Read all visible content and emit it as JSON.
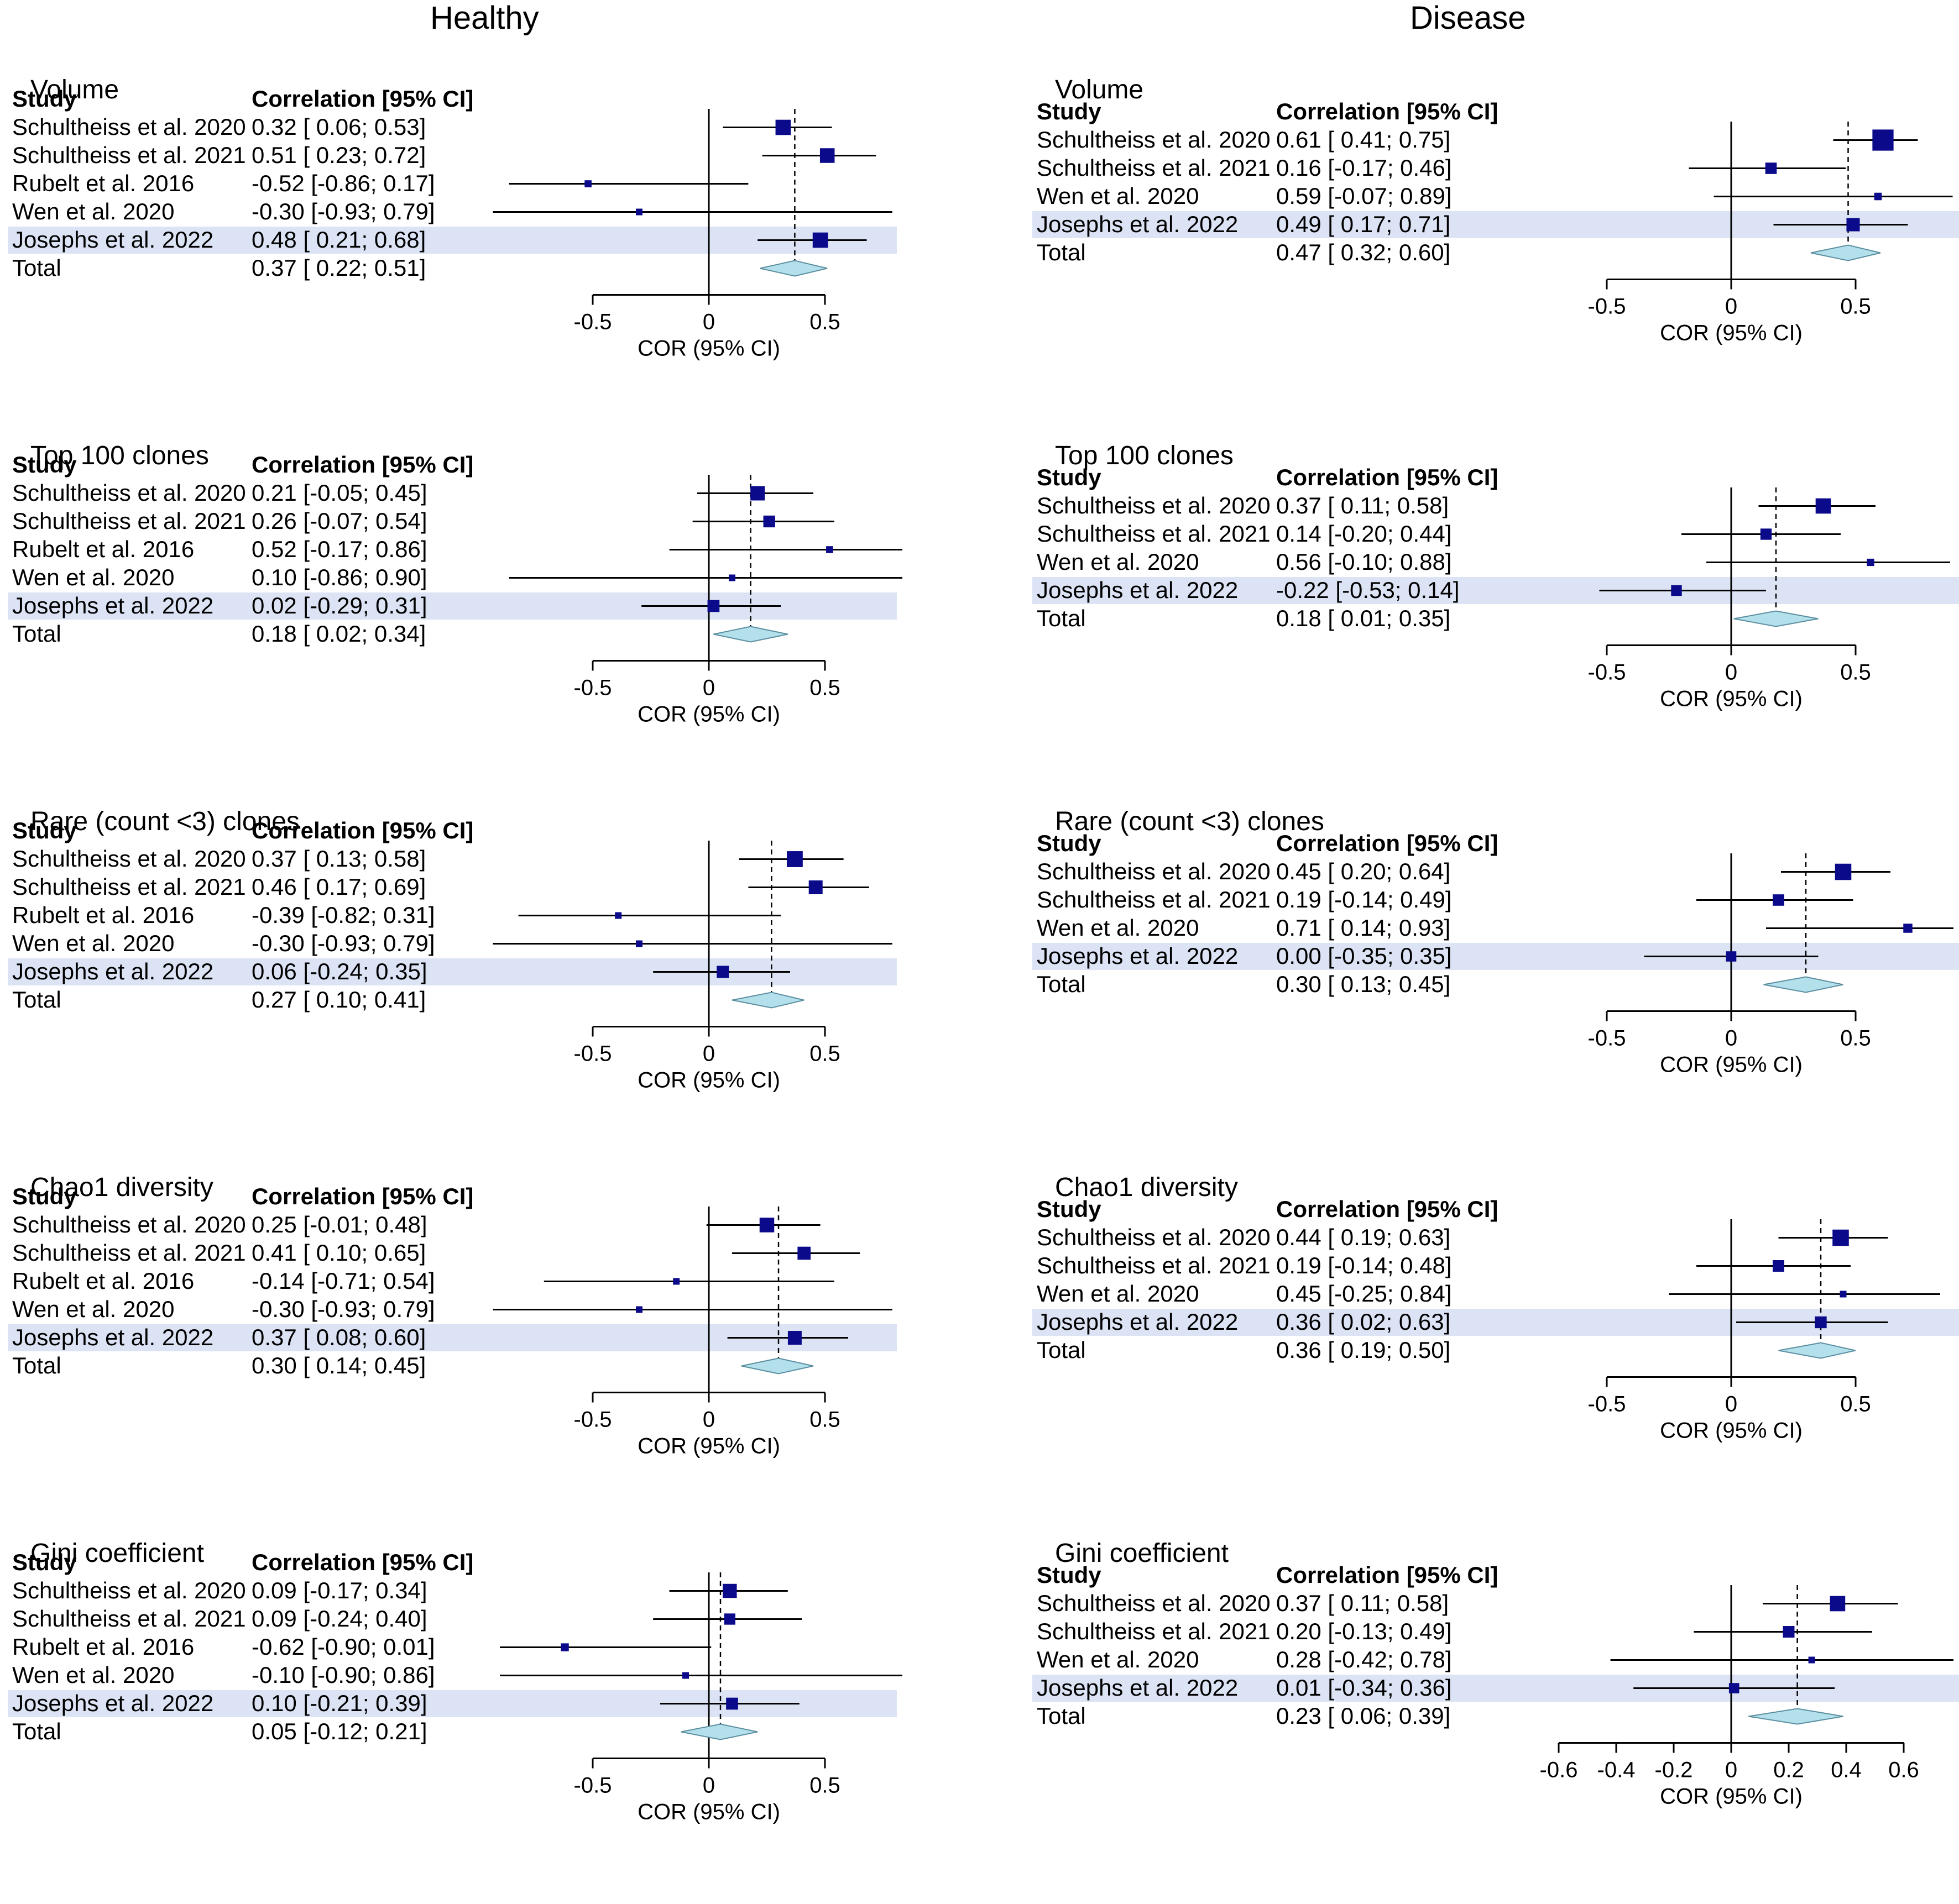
{
  "columns": {
    "healthy": "Healthy",
    "disease": "Disease"
  },
  "headers": {
    "study": "Study",
    "estimate": "Correlation [95% CI]",
    "xlabel": "COR (95% CI)"
  },
  "colors": {
    "square": "#0a0a8a",
    "diamond": "#b4e0ec",
    "highlight": "#dbe3f5"
  },
  "chart_data": [
    {
      "type": "forest",
      "column": "Healthy",
      "title": "Volume",
      "ticks": [
        -0.5,
        0,
        0.5
      ],
      "tick_labels": [
        "-0.5",
        "0",
        "0.5"
      ],
      "xlabel": "COR (95% CI)",
      "rows": [
        {
          "study": "Schultheiss et al. 2020",
          "est": 0.32,
          "lo": 0.06,
          "hi": 0.53,
          "label": "0.32 [ 0.06; 0.53]",
          "highlight": false
        },
        {
          "study": "Schultheiss et al. 2021",
          "est": 0.51,
          "lo": 0.23,
          "hi": 0.72,
          "label": "0.51 [ 0.23; 0.72]",
          "highlight": false
        },
        {
          "study": "Rubelt et al. 2016",
          "est": -0.52,
          "lo": -0.86,
          "hi": 0.17,
          "label": "-0.52 [-0.86; 0.17]",
          "highlight": false
        },
        {
          "study": "Wen et al. 2020",
          "est": -0.3,
          "lo": -0.93,
          "hi": 0.79,
          "label": "-0.30 [-0.93; 0.79]",
          "highlight": false
        },
        {
          "study": "Josephs et al. 2022",
          "est": 0.48,
          "lo": 0.21,
          "hi": 0.68,
          "label": "0.48 [ 0.21; 0.68]",
          "highlight": true
        }
      ],
      "total": {
        "study": "Total",
        "est": 0.37,
        "lo": 0.22,
        "hi": 0.51,
        "label": "0.37 [ 0.22; 0.51]"
      }
    },
    {
      "type": "forest",
      "column": "Disease",
      "title": "Volume",
      "ticks": [
        -0.5,
        0,
        0.5
      ],
      "tick_labels": [
        "-0.5",
        "0",
        "0.5"
      ],
      "xlabel": "COR (95% CI)",
      "rows": [
        {
          "study": "Schultheiss et al. 2020",
          "est": 0.61,
          "lo": 0.41,
          "hi": 0.75,
          "label": "0.61 [ 0.41; 0.75]",
          "highlight": false
        },
        {
          "study": "Schultheiss et al. 2021",
          "est": 0.16,
          "lo": -0.17,
          "hi": 0.46,
          "label": "0.16 [-0.17; 0.46]",
          "highlight": false
        },
        {
          "study": "Wen et al. 2020",
          "est": 0.59,
          "lo": -0.07,
          "hi": 0.89,
          "label": "0.59 [-0.07; 0.89]",
          "highlight": false
        },
        {
          "study": "Josephs et al. 2022",
          "est": 0.49,
          "lo": 0.17,
          "hi": 0.71,
          "label": "0.49 [ 0.17; 0.71]",
          "highlight": true
        }
      ],
      "total": {
        "study": "Total",
        "est": 0.47,
        "lo": 0.32,
        "hi": 0.6,
        "label": "0.47 [ 0.32; 0.60]"
      }
    },
    {
      "type": "forest",
      "column": "Healthy",
      "title": "Top 100 clones",
      "ticks": [
        -0.5,
        0,
        0.5
      ],
      "tick_labels": [
        "-0.5",
        "0",
        "0.5"
      ],
      "xlabel": "COR (95% CI)",
      "rows": [
        {
          "study": "Schultheiss et al. 2020",
          "est": 0.21,
          "lo": -0.05,
          "hi": 0.45,
          "label": "0.21 [-0.05; 0.45]",
          "highlight": false
        },
        {
          "study": "Schultheiss et al. 2021",
          "est": 0.26,
          "lo": -0.07,
          "hi": 0.54,
          "label": "0.26 [-0.07; 0.54]",
          "highlight": false
        },
        {
          "study": "Rubelt et al. 2016",
          "est": 0.52,
          "lo": -0.17,
          "hi": 0.86,
          "label": "0.52 [-0.17; 0.86]",
          "highlight": false
        },
        {
          "study": "Wen et al. 2020",
          "est": 0.1,
          "lo": -0.86,
          "hi": 0.9,
          "label": "0.10 [-0.86; 0.90]",
          "highlight": false
        },
        {
          "study": "Josephs et al. 2022",
          "est": 0.02,
          "lo": -0.29,
          "hi": 0.31,
          "label": "0.02 [-0.29; 0.31]",
          "highlight": true
        }
      ],
      "total": {
        "study": "Total",
        "est": 0.18,
        "lo": 0.02,
        "hi": 0.34,
        "label": "0.18 [ 0.02; 0.34]"
      }
    },
    {
      "type": "forest",
      "column": "Disease",
      "title": "Top 100 clones",
      "ticks": [
        -0.5,
        0,
        0.5
      ],
      "tick_labels": [
        "-0.5",
        "0",
        "0.5"
      ],
      "xlabel": "COR (95% CI)",
      "rows": [
        {
          "study": "Schultheiss et al. 2020",
          "est": 0.37,
          "lo": 0.11,
          "hi": 0.58,
          "label": "0.37 [ 0.11; 0.58]",
          "highlight": false
        },
        {
          "study": "Schultheiss et al. 2021",
          "est": 0.14,
          "lo": -0.2,
          "hi": 0.44,
          "label": "0.14 [-0.20; 0.44]",
          "highlight": false
        },
        {
          "study": "Wen et al. 2020",
          "est": 0.56,
          "lo": -0.1,
          "hi": 0.88,
          "label": "0.56 [-0.10; 0.88]",
          "highlight": false
        },
        {
          "study": "Josephs et al. 2022",
          "est": -0.22,
          "lo": -0.53,
          "hi": 0.14,
          "label": "-0.22 [-0.53; 0.14]",
          "highlight": true
        }
      ],
      "total": {
        "study": "Total",
        "est": 0.18,
        "lo": 0.01,
        "hi": 0.35,
        "label": "0.18 [ 0.01; 0.35]"
      }
    },
    {
      "type": "forest",
      "column": "Healthy",
      "title": "Rare (count <3) clones",
      "ticks": [
        -0.5,
        0,
        0.5
      ],
      "tick_labels": [
        "-0.5",
        "0",
        "0.5"
      ],
      "xlabel": "COR (95% CI)",
      "rows": [
        {
          "study": "Schultheiss et al. 2020",
          "est": 0.37,
          "lo": 0.13,
          "hi": 0.58,
          "label": "0.37 [ 0.13; 0.58]",
          "highlight": false
        },
        {
          "study": "Schultheiss et al. 2021",
          "est": 0.46,
          "lo": 0.17,
          "hi": 0.69,
          "label": "0.46 [ 0.17; 0.69]",
          "highlight": false
        },
        {
          "study": "Rubelt et al. 2016",
          "est": -0.39,
          "lo": -0.82,
          "hi": 0.31,
          "label": "-0.39 [-0.82; 0.31]",
          "highlight": false
        },
        {
          "study": "Wen et al. 2020",
          "est": -0.3,
          "lo": -0.93,
          "hi": 0.79,
          "label": "-0.30 [-0.93; 0.79]",
          "highlight": false
        },
        {
          "study": "Josephs et al. 2022",
          "est": 0.06,
          "lo": -0.24,
          "hi": 0.35,
          "label": "0.06 [-0.24; 0.35]",
          "highlight": true
        }
      ],
      "total": {
        "study": "Total",
        "est": 0.27,
        "lo": 0.1,
        "hi": 0.41,
        "label": "0.27 [ 0.10; 0.41]"
      }
    },
    {
      "type": "forest",
      "column": "Disease",
      "title": "Rare (count <3) clones",
      "ticks": [
        -0.5,
        0,
        0.5
      ],
      "tick_labels": [
        "-0.5",
        "0",
        "0.5"
      ],
      "xlabel": "COR (95% CI)",
      "rows": [
        {
          "study": "Schultheiss et al. 2020",
          "est": 0.45,
          "lo": 0.2,
          "hi": 0.64,
          "label": "0.45 [ 0.20; 0.64]",
          "highlight": false
        },
        {
          "study": "Schultheiss et al. 2021",
          "est": 0.19,
          "lo": -0.14,
          "hi": 0.49,
          "label": "0.19 [-0.14; 0.49]",
          "highlight": false
        },
        {
          "study": "Wen et al. 2020",
          "est": 0.71,
          "lo": 0.14,
          "hi": 0.93,
          "label": "0.71 [ 0.14; 0.93]",
          "highlight": false
        },
        {
          "study": "Josephs et al. 2022",
          "est": 0.0,
          "lo": -0.35,
          "hi": 0.35,
          "label": "0.00 [-0.35; 0.35]",
          "highlight": true
        }
      ],
      "total": {
        "study": "Total",
        "est": 0.3,
        "lo": 0.13,
        "hi": 0.45,
        "label": "0.30 [ 0.13; 0.45]"
      }
    },
    {
      "type": "forest",
      "column": "Healthy",
      "title": "Chao1 diversity",
      "ticks": [
        -0.5,
        0,
        0.5
      ],
      "tick_labels": [
        "-0.5",
        "0",
        "0.5"
      ],
      "xlabel": "COR (95% CI)",
      "rows": [
        {
          "study": "Schultheiss et al. 2020",
          "est": 0.25,
          "lo": -0.01,
          "hi": 0.48,
          "label": "0.25 [-0.01; 0.48]",
          "highlight": false
        },
        {
          "study": "Schultheiss et al. 2021",
          "est": 0.41,
          "lo": 0.1,
          "hi": 0.65,
          "label": "0.41 [ 0.10; 0.65]",
          "highlight": false
        },
        {
          "study": "Rubelt et al. 2016",
          "est": -0.14,
          "lo": -0.71,
          "hi": 0.54,
          "label": "-0.14 [-0.71; 0.54]",
          "highlight": false
        },
        {
          "study": "Wen et al. 2020",
          "est": -0.3,
          "lo": -0.93,
          "hi": 0.79,
          "label": "-0.30 [-0.93; 0.79]",
          "highlight": false
        },
        {
          "study": "Josephs et al. 2022",
          "est": 0.37,
          "lo": 0.08,
          "hi": 0.6,
          "label": "0.37 [ 0.08; 0.60]",
          "highlight": true
        }
      ],
      "total": {
        "study": "Total",
        "est": 0.3,
        "lo": 0.14,
        "hi": 0.45,
        "label": "0.30 [ 0.14; 0.45]"
      }
    },
    {
      "type": "forest",
      "column": "Disease",
      "title": "Chao1 diversity",
      "ticks": [
        -0.5,
        0,
        0.5
      ],
      "tick_labels": [
        "-0.5",
        "0",
        "0.5"
      ],
      "xlabel": "COR (95% CI)",
      "rows": [
        {
          "study": "Schultheiss et al. 2020",
          "est": 0.44,
          "lo": 0.19,
          "hi": 0.63,
          "label": "0.44 [ 0.19; 0.63]",
          "highlight": false
        },
        {
          "study": "Schultheiss et al. 2021",
          "est": 0.19,
          "lo": -0.14,
          "hi": 0.48,
          "label": "0.19 [-0.14; 0.48]",
          "highlight": false
        },
        {
          "study": "Wen et al. 2020",
          "est": 0.45,
          "lo": -0.25,
          "hi": 0.84,
          "label": "0.45 [-0.25; 0.84]",
          "highlight": false
        },
        {
          "study": "Josephs et al. 2022",
          "est": 0.36,
          "lo": 0.02,
          "hi": 0.63,
          "label": "0.36 [ 0.02; 0.63]",
          "highlight": true
        }
      ],
      "total": {
        "study": "Total",
        "est": 0.36,
        "lo": 0.19,
        "hi": 0.5,
        "label": "0.36 [ 0.19; 0.50]"
      }
    },
    {
      "type": "forest",
      "column": "Healthy",
      "title": "Gini coefficient",
      "ticks": [
        -0.5,
        0,
        0.5
      ],
      "tick_labels": [
        "-0.5",
        "0",
        "0.5"
      ],
      "xlabel": "COR (95% CI)",
      "rows": [
        {
          "study": "Schultheiss et al. 2020",
          "est": 0.09,
          "lo": -0.17,
          "hi": 0.34,
          "label": "0.09 [-0.17; 0.34]",
          "highlight": false
        },
        {
          "study": "Schultheiss et al. 2021",
          "est": 0.09,
          "lo": -0.24,
          "hi": 0.4,
          "label": "0.09 [-0.24; 0.40]",
          "highlight": false
        },
        {
          "study": "Rubelt et al. 2016",
          "est": -0.62,
          "lo": -0.9,
          "hi": 0.01,
          "label": "-0.62 [-0.90; 0.01]",
          "highlight": false
        },
        {
          "study": "Wen et al. 2020",
          "est": -0.1,
          "lo": -0.9,
          "hi": 0.86,
          "label": "-0.10 [-0.90; 0.86]",
          "highlight": false
        },
        {
          "study": "Josephs et al. 2022",
          "est": 0.1,
          "lo": -0.21,
          "hi": 0.39,
          "label": "0.10 [-0.21; 0.39]",
          "highlight": true
        }
      ],
      "total": {
        "study": "Total",
        "est": 0.05,
        "lo": -0.12,
        "hi": 0.21,
        "label": "0.05 [-0.12; 0.21]"
      }
    },
    {
      "type": "forest",
      "column": "Disease",
      "title": "Gini coefficient",
      "ticks": [
        -0.6,
        -0.4,
        -0.2,
        0,
        0.2,
        0.4,
        0.6
      ],
      "tick_labels": [
        "-0.6",
        "-0.4",
        "-0.2",
        "0",
        "0.2",
        "0.4",
        "0.6"
      ],
      "xlabel": "COR (95% CI)",
      "rows": [
        {
          "study": "Schultheiss et al. 2020",
          "est": 0.37,
          "lo": 0.11,
          "hi": 0.58,
          "label": "0.37 [ 0.11; 0.58]",
          "highlight": false
        },
        {
          "study": "Schultheiss et al. 2021",
          "est": 0.2,
          "lo": -0.13,
          "hi": 0.49,
          "label": "0.20 [-0.13; 0.49]",
          "highlight": false
        },
        {
          "study": "Wen et al. 2020",
          "est": 0.28,
          "lo": -0.42,
          "hi": 0.78,
          "label": "0.28 [-0.42; 0.78]",
          "highlight": false
        },
        {
          "study": "Josephs et al. 2022",
          "est": 0.01,
          "lo": -0.34,
          "hi": 0.36,
          "label": "0.01 [-0.34; 0.36]",
          "highlight": true
        }
      ],
      "total": {
        "study": "Total",
        "est": 0.23,
        "lo": 0.06,
        "hi": 0.39,
        "label": "0.23 [ 0.06; 0.39]"
      }
    }
  ]
}
